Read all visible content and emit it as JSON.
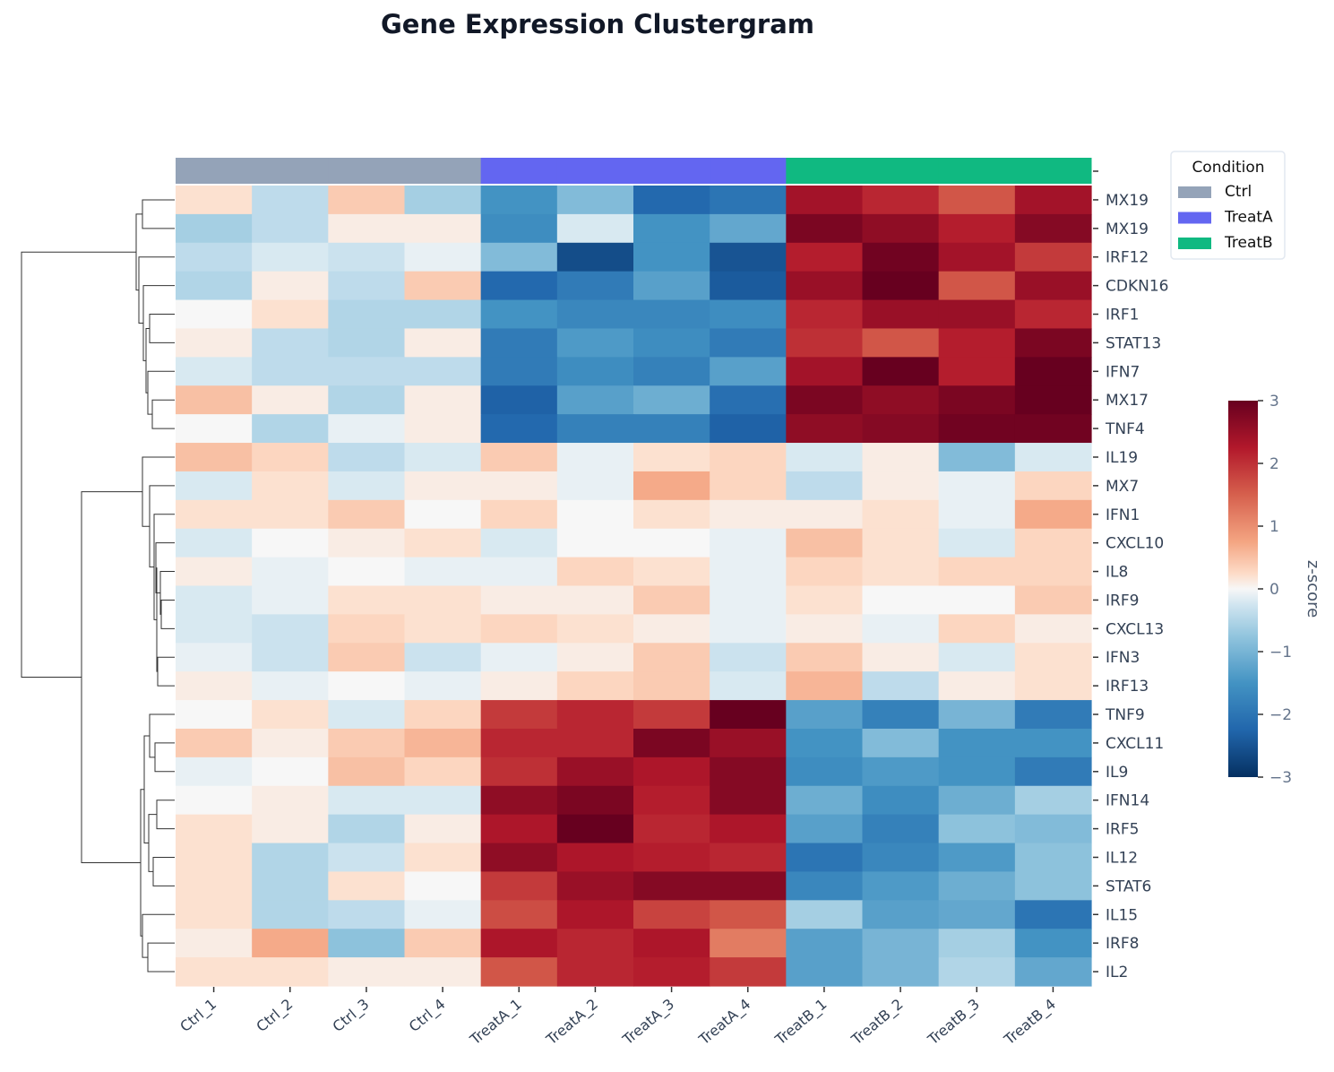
{
  "chart_data": {
    "type": "heatmap",
    "title": "Gene Expression Clustergram",
    "columns": [
      "Ctrl_1",
      "Ctrl_2",
      "Ctrl_3",
      "Ctrl_4",
      "TreatA_1",
      "TreatA_2",
      "TreatA_3",
      "TreatA_4",
      "TreatB_1",
      "TreatB_2",
      "TreatB_3",
      "TreatB_4"
    ],
    "column_conditions": [
      "Ctrl",
      "Ctrl",
      "Ctrl",
      "Ctrl",
      "TreatA",
      "TreatA",
      "TreatA",
      "TreatA",
      "TreatB",
      "TreatB",
      "TreatB",
      "TreatB"
    ],
    "rows": [
      "MX19",
      "MX19",
      "IRF12",
      "CDKN16",
      "IRF1",
      "STAT13",
      "IFN7",
      "MX17",
      "TNF4",
      "IL19",
      "MX7",
      "IFN1",
      "CXCL10",
      "IL8",
      "IRF9",
      "CXCL13",
      "IFN3",
      "IRF13",
      "TNF9",
      "CXCL11",
      "IL9",
      "IFN14",
      "IRF5",
      "IL12",
      "STAT6",
      "IL15",
      "IRF8",
      "IL2"
    ],
    "values": [
      [
        0.2,
        -0.4,
        0.4,
        -0.6,
        -1.5,
        -0.9,
        -2.2,
        -2.0,
        2.4,
        2.1,
        1.6,
        2.4
      ],
      [
        -0.6,
        -0.4,
        0.1,
        0.1,
        -1.6,
        -0.2,
        -1.5,
        -1.2,
        2.8,
        2.6,
        2.2,
        2.7
      ],
      [
        -0.4,
        -0.2,
        -0.3,
        -0.1,
        -0.9,
        -2.6,
        -1.5,
        -2.5,
        2.2,
        2.9,
        2.4,
        1.9
      ],
      [
        -0.5,
        0.1,
        -0.4,
        0.4,
        -2.2,
        -1.9,
        -1.3,
        -2.4,
        2.5,
        3.0,
        1.6,
        2.5
      ],
      [
        0.0,
        0.2,
        -0.5,
        -0.5,
        -1.5,
        -1.7,
        -1.7,
        -1.6,
        2.1,
        2.5,
        2.5,
        2.1
      ],
      [
        0.1,
        -0.4,
        -0.5,
        0.1,
        -1.9,
        -1.4,
        -1.6,
        -1.9,
        2.0,
        1.6,
        2.2,
        2.8
      ],
      [
        -0.2,
        -0.4,
        -0.4,
        -0.4,
        -1.9,
        -1.6,
        -1.8,
        -1.3,
        2.4,
        3.0,
        2.2,
        3.0
      ],
      [
        0.5,
        0.1,
        -0.5,
        0.1,
        -2.3,
        -1.3,
        -1.1,
        -2.1,
        2.8,
        2.6,
        2.8,
        3.0
      ],
      [
        0.0,
        -0.5,
        -0.1,
        0.1,
        -2.2,
        -1.8,
        -1.8,
        -2.3,
        2.6,
        2.7,
        2.9,
        2.9
      ],
      [
        0.5,
        0.3,
        -0.4,
        -0.2,
        0.4,
        -0.1,
        0.2,
        0.3,
        -0.2,
        0.1,
        -0.9,
        -0.2
      ],
      [
        -0.2,
        0.2,
        -0.2,
        0.1,
        0.1,
        -0.1,
        0.7,
        0.3,
        -0.4,
        0.1,
        -0.1,
        0.3
      ],
      [
        0.2,
        0.2,
        0.4,
        0.0,
        0.3,
        0.0,
        0.2,
        0.1,
        0.1,
        0.2,
        -0.1,
        0.7
      ],
      [
        -0.2,
        0.0,
        0.1,
        0.2,
        -0.2,
        0.0,
        0.0,
        -0.1,
        0.5,
        0.2,
        -0.2,
        0.3
      ],
      [
        0.1,
        -0.1,
        0.0,
        -0.1,
        -0.1,
        0.3,
        0.2,
        -0.1,
        0.3,
        0.2,
        0.3,
        0.3
      ],
      [
        -0.2,
        -0.1,
        0.2,
        0.2,
        0.1,
        0.1,
        0.4,
        -0.1,
        0.2,
        0.0,
        0.0,
        0.4
      ],
      [
        -0.2,
        -0.3,
        0.3,
        0.2,
        0.3,
        0.2,
        0.1,
        -0.1,
        0.1,
        -0.1,
        0.3,
        0.1
      ],
      [
        -0.1,
        -0.3,
        0.4,
        -0.3,
        -0.1,
        0.1,
        0.4,
        -0.3,
        0.4,
        0.1,
        -0.2,
        0.2
      ],
      [
        0.1,
        -0.1,
        0.0,
        -0.1,
        0.1,
        0.3,
        0.4,
        -0.2,
        0.6,
        -0.4,
        0.1,
        0.2
      ],
      [
        0.0,
        0.2,
        -0.2,
        0.3,
        1.9,
        2.1,
        1.9,
        3.0,
        -1.3,
        -1.8,
        -1.0,
        -1.9
      ],
      [
        0.4,
        0.1,
        0.4,
        0.6,
        2.1,
        2.1,
        2.8,
        2.5,
        -1.5,
        -0.9,
        -1.5,
        -1.5
      ],
      [
        -0.1,
        0.0,
        0.5,
        0.3,
        2.0,
        2.5,
        2.3,
        2.7,
        -1.6,
        -1.4,
        -1.5,
        -1.9
      ],
      [
        0.0,
        0.1,
        -0.2,
        -0.2,
        2.6,
        2.8,
        2.2,
        2.7,
        -1.1,
        -1.6,
        -1.1,
        -0.6
      ],
      [
        0.2,
        0.1,
        -0.5,
        0.1,
        2.3,
        3.0,
        2.1,
        2.3,
        -1.3,
        -1.8,
        -0.8,
        -0.9
      ],
      [
        0.2,
        -0.5,
        -0.3,
        0.2,
        2.6,
        2.3,
        2.2,
        2.1,
        -2.0,
        -1.7,
        -1.4,
        -0.8
      ],
      [
        0.2,
        -0.5,
        0.2,
        0.0,
        1.9,
        2.5,
        2.7,
        2.7,
        -1.7,
        -1.4,
        -1.1,
        -0.8
      ],
      [
        0.2,
        -0.5,
        -0.4,
        -0.1,
        1.7,
        2.3,
        1.8,
        1.6,
        -0.6,
        -1.3,
        -1.2,
        -2.0
      ],
      [
        0.1,
        0.7,
        -0.8,
        0.4,
        2.3,
        2.1,
        2.3,
        1.2,
        -1.3,
        -1.0,
        -0.6,
        -1.5
      ],
      [
        0.2,
        0.2,
        0.1,
        0.1,
        1.6,
        2.1,
        2.2,
        1.9,
        -1.3,
        -1.0,
        -0.5,
        -1.2
      ]
    ],
    "color_scale": {
      "name": "RdBu_r",
      "min": -3,
      "max": 3,
      "label": "z-score",
      "ticks": [
        3,
        2,
        1,
        0,
        -1,
        -2,
        -3
      ],
      "tick_labels": [
        "3",
        "2",
        "1",
        "0",
        "−1",
        "−2",
        "−3"
      ]
    },
    "legend": {
      "title": "Condition",
      "position": "top-right",
      "entries": [
        {
          "label": "Ctrl",
          "color": "#94a3b8"
        },
        {
          "label": "TreatA",
          "color": "#6366f1"
        },
        {
          "label": "TreatB",
          "color": "#10b981"
        }
      ]
    },
    "row_dendrogram": true
  }
}
